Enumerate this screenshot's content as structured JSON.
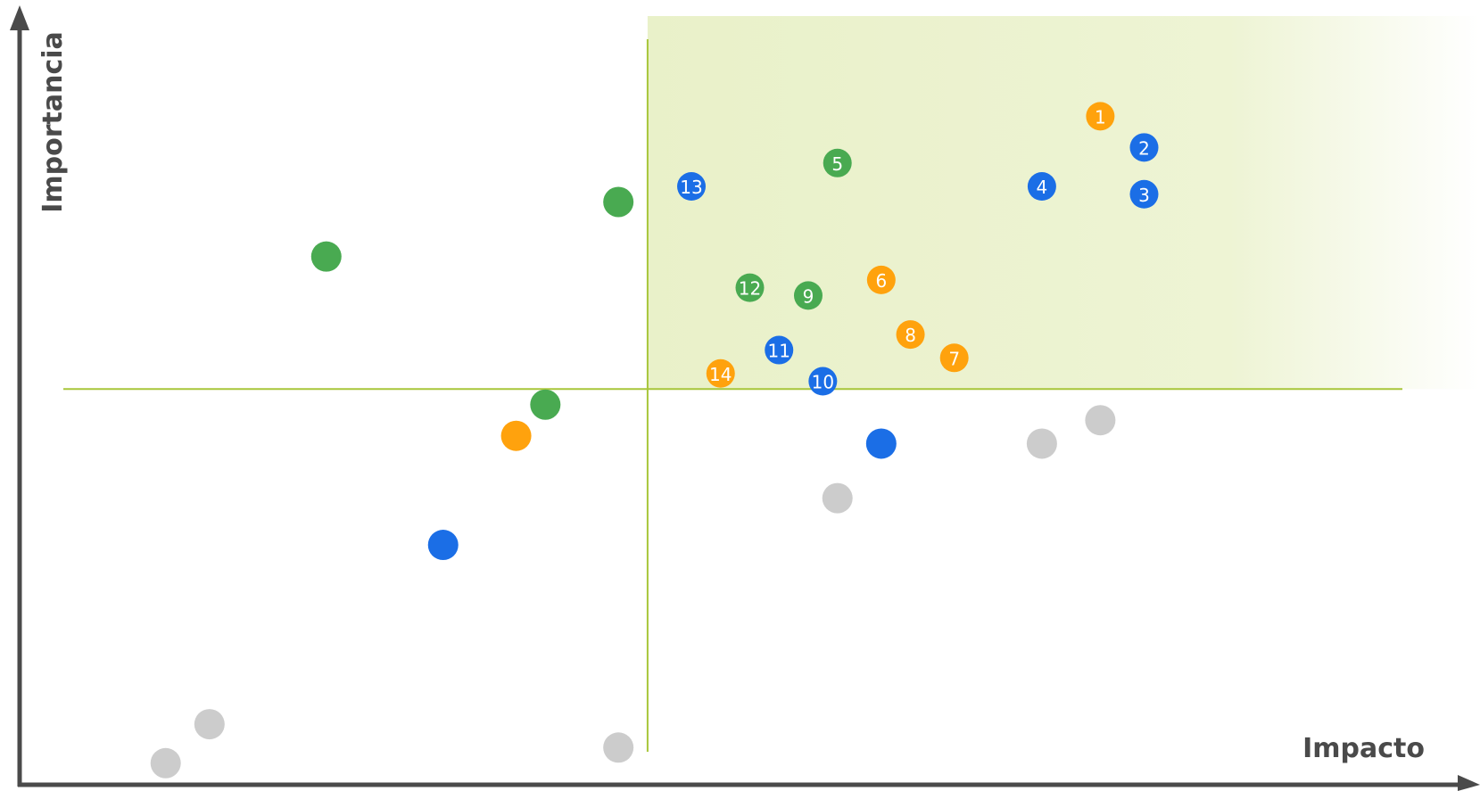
{
  "chart_data": {
    "type": "scatter",
    "title": "",
    "xlabel": "Impacto",
    "ylabel": "Importancia",
    "xlim": [
      0,
      100
    ],
    "ylim": [
      0,
      100
    ],
    "grid": false,
    "threshold": {
      "x": 43,
      "y": 51
    },
    "highlight_quadrant": "top-right",
    "colors": {
      "axis": "#4a4a4a",
      "threshold_line": "#a8c63a",
      "highlight": "#e8f0c6",
      "orange": "#ffa20d",
      "blue": "#1b6ee6",
      "green": "#49aa51",
      "gray": "#cccccc"
    },
    "points": [
      {
        "label": "1",
        "x": 74,
        "y": 86,
        "color": "orange"
      },
      {
        "label": "2",
        "x": 77,
        "y": 82,
        "color": "blue"
      },
      {
        "label": "3",
        "x": 77,
        "y": 76,
        "color": "blue"
      },
      {
        "label": "4",
        "x": 70,
        "y": 77,
        "color": "blue"
      },
      {
        "label": "5",
        "x": 56,
        "y": 80,
        "color": "green"
      },
      {
        "label": "6",
        "x": 59,
        "y": 65,
        "color": "orange"
      },
      {
        "label": "7",
        "x": 64,
        "y": 55,
        "color": "orange"
      },
      {
        "label": "8",
        "x": 61,
        "y": 58,
        "color": "orange"
      },
      {
        "label": "9",
        "x": 54,
        "y": 63,
        "color": "green"
      },
      {
        "label": "10",
        "x": 55,
        "y": 52,
        "color": "blue"
      },
      {
        "label": "11",
        "x": 52,
        "y": 56,
        "color": "blue"
      },
      {
        "label": "12",
        "x": 50,
        "y": 64,
        "color": "green"
      },
      {
        "label": "13",
        "x": 46,
        "y": 77,
        "color": "blue"
      },
      {
        "label": "14",
        "x": 48,
        "y": 53,
        "color": "orange"
      },
      {
        "label": "",
        "x": 41,
        "y": 75,
        "color": "green"
      },
      {
        "label": "",
        "x": 21,
        "y": 68,
        "color": "green"
      },
      {
        "label": "",
        "x": 36,
        "y": 49,
        "color": "green"
      },
      {
        "label": "",
        "x": 34,
        "y": 45,
        "color": "orange"
      },
      {
        "label": "",
        "x": 29,
        "y": 31,
        "color": "blue"
      },
      {
        "label": "",
        "x": 59,
        "y": 44,
        "color": "blue"
      },
      {
        "label": "",
        "x": 56,
        "y": 37,
        "color": "gray"
      },
      {
        "label": "",
        "x": 70,
        "y": 44,
        "color": "gray"
      },
      {
        "label": "",
        "x": 74,
        "y": 47,
        "color": "gray"
      },
      {
        "label": "",
        "x": 13,
        "y": 8,
        "color": "gray"
      },
      {
        "label": "",
        "x": 10,
        "y": 3,
        "color": "gray"
      },
      {
        "label": "",
        "x": 41,
        "y": 5,
        "color": "gray"
      }
    ]
  }
}
